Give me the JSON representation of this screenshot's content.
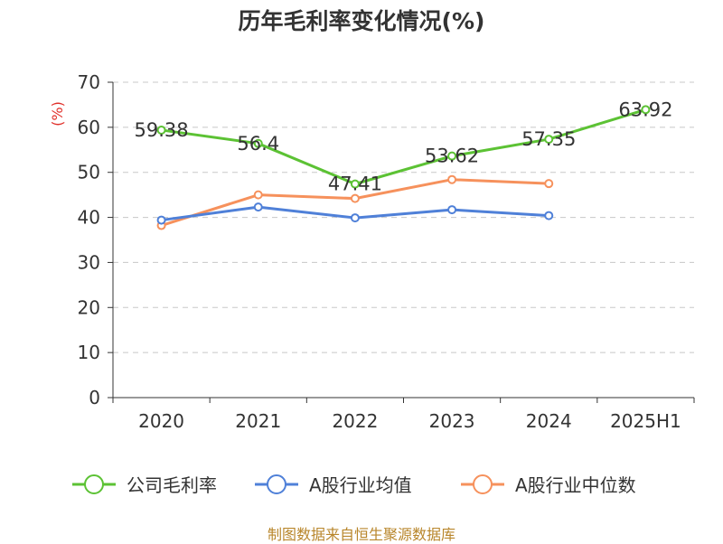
{
  "chart_data": {
    "type": "line",
    "title": "历年毛利率变化情况(%)",
    "ylabel": "(%)",
    "ylabel_color": "#e0302a",
    "categories": [
      "2020",
      "2021",
      "2022",
      "2023",
      "2024",
      "2025H1"
    ],
    "ylim": [
      0,
      70
    ],
    "yticks": [
      "0",
      "10",
      "20",
      "30",
      "40",
      "50",
      "60",
      "70"
    ],
    "grid": true,
    "legend_position": "bottom",
    "series": [
      {
        "name": "公司毛利率",
        "color": "#5cc234",
        "values": [
          59.38,
          56.4,
          47.41,
          53.62,
          57.35,
          63.92
        ],
        "data_labels": [
          "59.38",
          "56.4",
          "47.41",
          "53.62",
          "57.35",
          "63.92"
        ]
      },
      {
        "name": "A股行业均值",
        "color": "#4f80d8",
        "values": [
          39.4,
          42.3,
          39.9,
          41.7,
          40.4,
          null
        ],
        "data_labels": null
      },
      {
        "name": "A股行业中位数",
        "color": "#f6915c",
        "values": [
          38.2,
          45.0,
          44.2,
          48.4,
          47.5,
          null
        ],
        "data_labels": null
      }
    ]
  },
  "source_note": "制图数据来自恒生聚源数据库"
}
